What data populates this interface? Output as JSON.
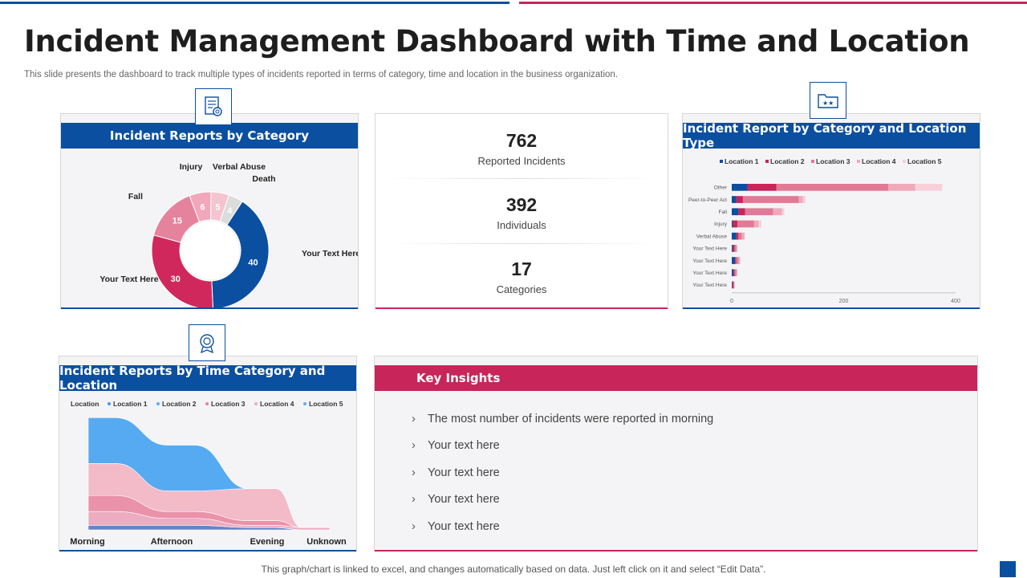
{
  "header": {
    "title": "Incident Management Dashboard with Time and Location",
    "subtitle": "This slide presents the dashboard to track multiple types of incidents reported in terms of category, time and location in the business organization."
  },
  "footer": {
    "note": "This graph/chart is linked to excel, and changes automatically based on data. Just left click on it and select “Edit Data”."
  },
  "colors": {
    "blue": "#0b4fa0",
    "red": "#c8255a",
    "pink": "#e5839c",
    "light_pink": "#f2b6c6",
    "pale_pink": "#f7d3dd"
  },
  "panels": {
    "category": {
      "title": "Incident Reports by Category",
      "icon": "report-icon"
    },
    "location_type": {
      "title": "Incident Report by Category and Location Type",
      "icon": "folder-stars-icon"
    },
    "time": {
      "title": "Incident Reports by Time Category and Location",
      "icon": "badge-icon"
    },
    "insights": {
      "title": "Key Insights"
    }
  },
  "kpis": [
    {
      "value": "762",
      "label": "Reported Incidents"
    },
    {
      "value": "392",
      "label": "Individuals"
    },
    {
      "value": "17",
      "label": "Categories"
    }
  ],
  "insights": [
    "The most number of incidents were reported in morning",
    "Your text here",
    "Your text here",
    "Your text here",
    "Your text here"
  ],
  "chart_data": [
    {
      "type": "pie",
      "title": "Incident Reports by Category",
      "categories": [
        "Your Text Here",
        "Your Text Here",
        "Fall",
        "Injury",
        "Verbal Abuse",
        "Death"
      ],
      "values": [
        40,
        30,
        15,
        6,
        5,
        4
      ],
      "colors": [
        "#0b4fa0",
        "#d0285c",
        "#e5839c",
        "#f2a7bb",
        "#f5c4d1",
        "#dcdcdc"
      ]
    },
    {
      "type": "bar",
      "orientation": "horizontal",
      "stacked": true,
      "title": "Incident Report by Category and Location Type",
      "categories": [
        "Other",
        "Peer-to-Peer Act",
        "Fall",
        "Injury",
        "Verbal Abuse",
        "Your Text Here",
        "Your Text Here",
        "Your Text Here",
        "Your Text Here"
      ],
      "series": [
        {
          "name": "Location 1",
          "values": [
            28,
            8,
            12,
            2,
            8,
            2,
            6,
            3,
            1
          ]
        },
        {
          "name": "Location 2",
          "values": [
            52,
            12,
            12,
            8,
            4,
            3,
            2,
            2,
            2
          ]
        },
        {
          "name": "Location 3",
          "values": [
            200,
            100,
            50,
            30,
            6,
            3,
            4,
            3,
            2
          ]
        },
        {
          "name": "Location 4",
          "values": [
            48,
            7,
            16,
            8,
            5,
            2,
            3,
            2,
            0
          ]
        },
        {
          "name": "Location 5",
          "values": [
            48,
            5,
            4,
            5,
            0,
            0,
            0,
            0,
            0
          ]
        }
      ],
      "xlim": [
        0,
        400
      ],
      "xticks": [
        0,
        200,
        400
      ],
      "legend": "top"
    },
    {
      "type": "area",
      "title": "Incident Reports by Time Category and Location",
      "categories": [
        "Morning",
        "Afternoon",
        "Evening",
        "Unknown"
      ],
      "legend_title": "Location",
      "series": [
        {
          "name": "Location 1",
          "values": [
            2,
            2,
            1,
            0
          ]
        },
        {
          "name": "Location 2",
          "values": [
            6,
            3,
            1,
            1
          ]
        },
        {
          "name": "Location 3",
          "values": [
            7,
            3,
            2,
            0
          ]
        },
        {
          "name": "Location 4",
          "values": [
            14,
            9,
            14,
            0
          ]
        },
        {
          "name": "Location 5",
          "values": [
            20,
            20,
            0,
            0
          ]
        }
      ]
    }
  ]
}
